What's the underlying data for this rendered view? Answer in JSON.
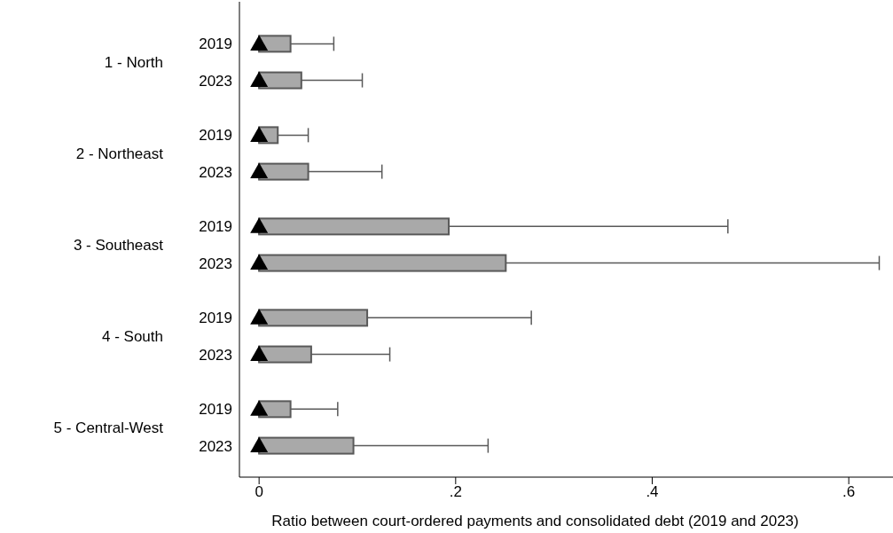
{
  "chart_data": {
    "type": "box",
    "orientation": "horizontal",
    "xlabel": "Ratio between court-ordered payments and consolidated debt (2019 and 2023)",
    "categories": [
      "2019",
      "2023",
      "2019",
      "2023",
      "2019",
      "2023",
      "2019",
      "2023",
      "2019",
      "2023"
    ],
    "annotations": [
      "1 - North",
      "2 - Northeast",
      "3 - Southeast",
      "4 - South",
      "5 - Central-West"
    ],
    "color": "#a9a9a9",
    "marker": "triangle",
    "boxes": [
      {
        "low": 0,
        "q1": 0,
        "median": 0,
        "q3": 0.032,
        "high": 0.076,
        "mean": 0
      },
      {
        "low": 0,
        "q1": 0,
        "median": 0,
        "q3": 0.043,
        "high": 0.105,
        "mean": 0
      },
      {
        "low": 0,
        "q1": 0,
        "median": 0,
        "q3": 0.019,
        "high": 0.05,
        "mean": 0
      },
      {
        "low": 0,
        "q1": 0,
        "median": 0,
        "q3": 0.05,
        "high": 0.125,
        "mean": 0
      },
      {
        "low": 0,
        "q1": 0,
        "median": 0,
        "q3": 0.193,
        "high": 0.477,
        "mean": 0
      },
      {
        "low": 0,
        "q1": 0,
        "median": 0,
        "q3": 0.251,
        "high": 0.631,
        "mean": 0
      },
      {
        "low": 0,
        "q1": 0,
        "median": 0,
        "q3": 0.11,
        "high": 0.277,
        "mean": 0
      },
      {
        "low": 0,
        "q1": 0,
        "median": 0,
        "q3": 0.053,
        "high": 0.133,
        "mean": 0
      },
      {
        "low": 0,
        "q1": 0,
        "median": 0,
        "q3": 0.032,
        "high": 0.08,
        "mean": 0
      },
      {
        "low": 0,
        "q1": 0,
        "median": 0,
        "q3": 0.096,
        "high": 0.233,
        "mean": 0
      }
    ],
    "xlim": [
      -0.02,
      0.645
    ],
    "xticks": [
      0,
      {
        "value": 0.2,
        "label": ".2"
      },
      {
        "value": 0.4,
        "label": ".4"
      },
      {
        "value": 0.6,
        "label": ".6"
      }
    ],
    "grid": false
  }
}
